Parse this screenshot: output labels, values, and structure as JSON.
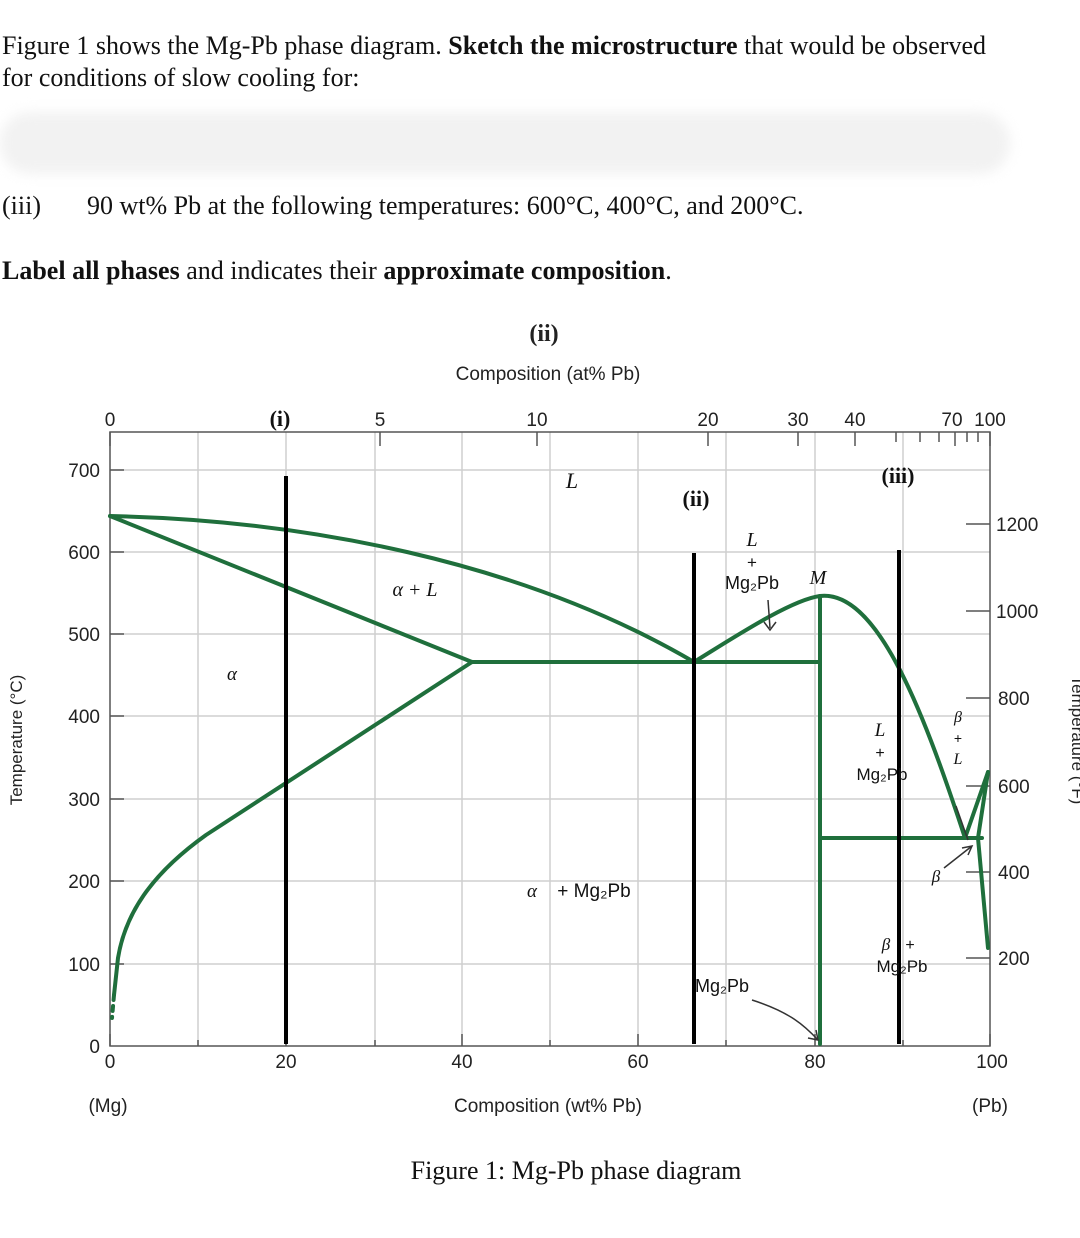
{
  "question": {
    "line1_a": "Figure 1 shows the Mg-Pb phase diagram. ",
    "line1_b": "Sketch the microstructure",
    "line1_c": " that would be observed",
    "line2": "for conditions of slow cooling for:",
    "part_label": "(iii)",
    "part_text": "90 wt% Pb at the following temperatures: 600°C, 400°C, and 200°C.",
    "instr_a": "Label all phases",
    "instr_b": " and indicates their ",
    "instr_c": "approximate composition",
    "instr_d": "."
  },
  "figure": {
    "caption": "Figure 1: Mg-Pb phase diagram",
    "top_marker": "(ii)",
    "top_axis_title": "Composition (at% Pb)",
    "top_ticks": [
      "0",
      "5",
      "10",
      "20",
      "30",
      "40",
      "70",
      "100"
    ],
    "bottom_ticks": [
      "0",
      "20",
      "40",
      "60",
      "80",
      "100"
    ],
    "bottom_axis_title": "Composition (wt% Pb)",
    "left_end": "(Mg)",
    "right_end": "(Pb)",
    "left_axis_title": "Temperature (°C)",
    "left_ticks": [
      "0",
      "100",
      "200",
      "300",
      "400",
      "500",
      "600",
      "700"
    ],
    "right_axis_title": "Temperature (°F)",
    "right_ticks": [
      "200",
      "400",
      "600",
      "800",
      "1000",
      "1200"
    ],
    "markers": {
      "i": "(i)",
      "ii": "(ii)",
      "iii": "(iii)"
    },
    "regions": {
      "liquid": "L",
      "alpha_liquid": "α + L",
      "alpha": "α",
      "liquid_mg2pb_l": "L",
      "plus": "+",
      "mg2pb": "Mg₂Pb",
      "point_m": "M",
      "alpha_mg2pb_a": "α",
      "alpha_mg2pb_b": "+ Mg₂Pb",
      "mg2pb_line": "Mg₂Pb",
      "right_l": "L",
      "right_plus": "+",
      "right_mg2pb": "Mg₂Pb",
      "beta_l_b": "β",
      "beta_l_plus": "+",
      "beta_l_l": "L",
      "beta": "β",
      "beta_mg2pb_b": "β",
      "beta_mg2pb_plus": "+",
      "beta_mg2pb_m": "Mg₂Pb"
    },
    "colors": {
      "phase_line": "#1f6f3c",
      "grid": "#cfcfcf",
      "axis": "#555555",
      "marker_line": "#000000"
    }
  }
}
